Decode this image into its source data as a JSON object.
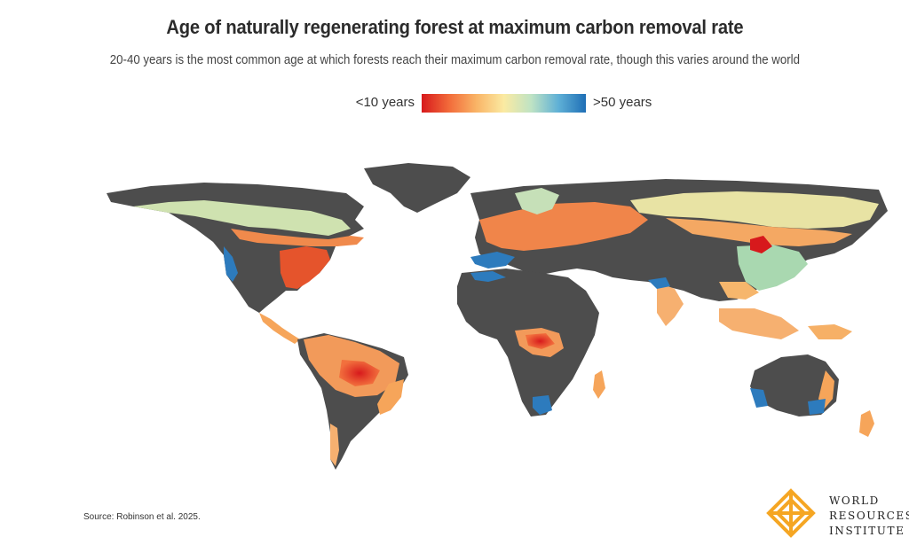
{
  "header": {
    "title": "Age of naturally regenerating forest at maximum carbon removal rate",
    "subtitle": "20-40 years is the most common age at which forests reach their maximum carbon removal rate, though this varies around the world"
  },
  "legend": {
    "min_label": "<10 years",
    "max_label": ">50 years",
    "gradient_colors": [
      "#d7191c",
      "#f26b3a",
      "#f9b466",
      "#fbeaa2",
      "#bfe3c4",
      "#5fb0d6",
      "#1f6fb6"
    ]
  },
  "map": {
    "land_color": "#4d4d4d",
    "no_data_color": "#4d4d4d",
    "background": "#ffffff"
  },
  "footer": {
    "source": "Source: Robinson et al. 2025.",
    "org_line1": "WORLD",
    "org_line2": "RESOURCES",
    "org_line3": "INSTITUTE",
    "logo_color": "#f5a623"
  }
}
